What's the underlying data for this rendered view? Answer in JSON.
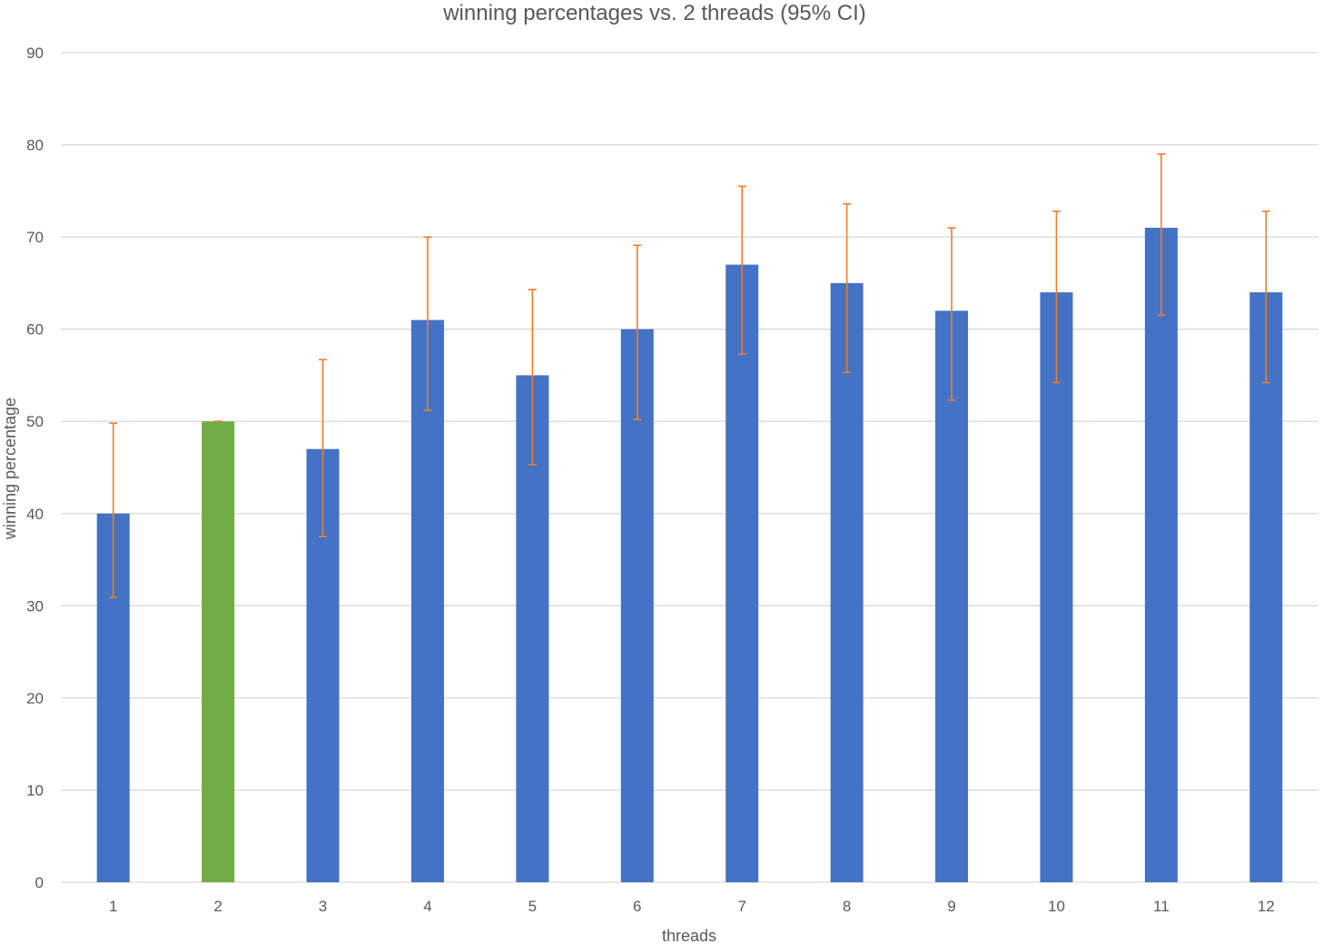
{
  "chart_data": {
    "type": "bar",
    "title": "winning percentages vs. 2 threads (95% CI)",
    "xlabel": "threads",
    "ylabel": "winning percentage",
    "categories": [
      "1",
      "2",
      "3",
      "4",
      "5",
      "6",
      "7",
      "8",
      "9",
      "10",
      "11",
      "12"
    ],
    "values": [
      40,
      50,
      47,
      61,
      55,
      60,
      67,
      65,
      62,
      64,
      71,
      64
    ],
    "ci_lower": [
      30.9,
      50,
      37.5,
      51.2,
      45.3,
      50.2,
      57.3,
      55.3,
      52.3,
      54.2,
      61.5,
      54.2
    ],
    "ci_upper": [
      49.8,
      50,
      56.7,
      70,
      64.3,
      69.1,
      75.5,
      73.6,
      71,
      72.8,
      79,
      72.8
    ],
    "highlight_category": "2",
    "ylim": [
      0,
      90
    ],
    "y_ticks": [
      0,
      10,
      20,
      30,
      40,
      50,
      60,
      70,
      80,
      90
    ],
    "grid": true,
    "legend": "none",
    "colors": {
      "bar": "#4472c4",
      "highlight": "#70ad47",
      "error_bar": "#ed7d31",
      "grid": "#d9d9d9",
      "text": "#595959"
    }
  }
}
